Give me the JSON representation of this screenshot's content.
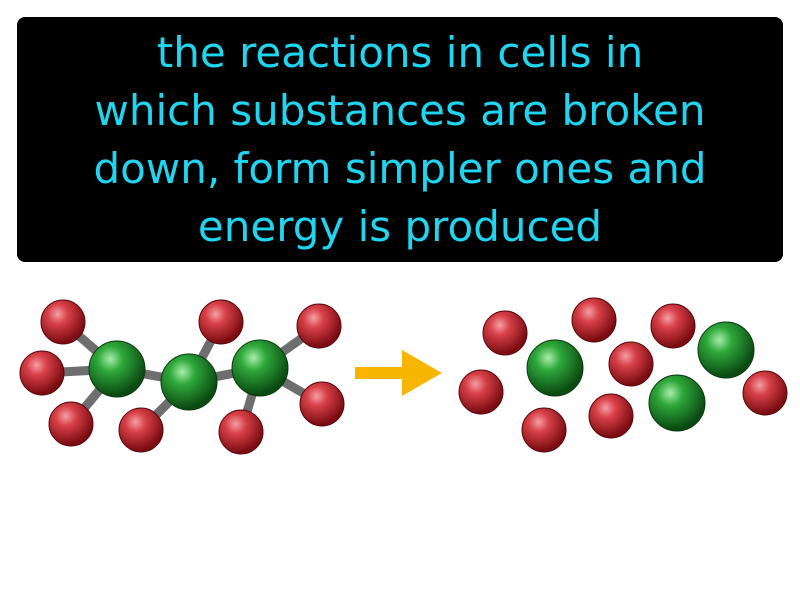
{
  "definition": {
    "lines": [
      "the reactions in cells in",
      "which substances are broken",
      "down, form simpler ones and",
      "energy is produced"
    ],
    "text_color": "#1fd5f0",
    "background_color": "#000000"
  },
  "illustration": {
    "colors": {
      "red_atom": "#c0202a",
      "green_atom": "#1b8a25",
      "bond": "#6e6e6e",
      "arrow": "#f7b500"
    }
  }
}
